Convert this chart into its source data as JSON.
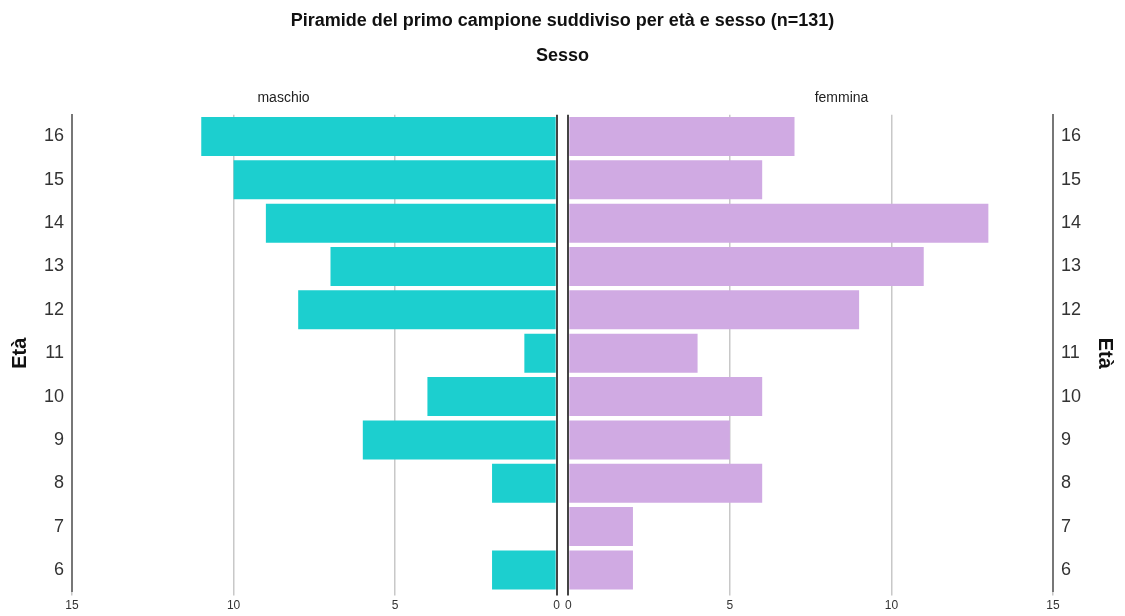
{
  "chart_data": [
    {
      "type": "bar",
      "orientation": "horizontal",
      "title": "Piramide del primo campione suddiviso per età e sesso (n=131)",
      "subtitle": "Sesso",
      "ylabel": "Età",
      "categories": [
        "16",
        "15",
        "14",
        "13",
        "12",
        "11",
        "10",
        "9",
        "8",
        "7",
        "6"
      ],
      "series": [
        {
          "name": "maschio",
          "color": "#1ccfcf",
          "values": [
            11,
            10,
            9,
            7,
            8,
            1,
            4,
            6,
            2,
            0,
            2
          ]
        }
      ],
      "xlim": [
        15,
        0
      ],
      "xticks": [
        15,
        10,
        5,
        0
      ],
      "grid": "x"
    },
    {
      "type": "bar",
      "orientation": "horizontal",
      "ylabel": "Età",
      "categories": [
        "16",
        "15",
        "14",
        "13",
        "12",
        "11",
        "10",
        "9",
        "8",
        "7",
        "6"
      ],
      "series": [
        {
          "name": "femmina",
          "color": "#d0aae3",
          "values": [
            7,
            6,
            13,
            11,
            9,
            4,
            6,
            5,
            6,
            2,
            2
          ]
        }
      ],
      "xlim": [
        0,
        15
      ],
      "xticks": [
        0,
        5,
        10,
        15
      ],
      "grid": "x"
    }
  ]
}
